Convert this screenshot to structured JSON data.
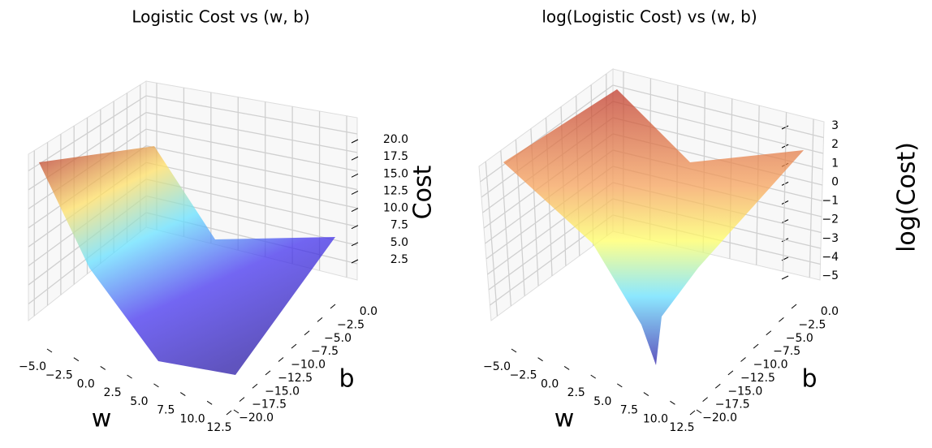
{
  "chart_data": [
    {
      "type": "surface3d",
      "title": "Logistic Cost vs (w, b)",
      "xlabel": "w",
      "ylabel": "b",
      "zlabel": "Cost",
      "xlim": [
        -5,
        12.5
      ],
      "ylim": [
        -20,
        0
      ],
      "zlim": [
        2.5,
        20
      ],
      "xticks": [
        {
          "value": -5,
          "label": "−5.0"
        },
        {
          "value": -2.5,
          "label": "−2.5"
        },
        {
          "value": 0,
          "label": "0.0"
        },
        2.5,
        {
          "value": 5,
          "label": "5.0"
        },
        7.5,
        {
          "value": 10,
          "label": "10.0"
        },
        12.5
      ],
      "yticks": [
        {
          "value": 0,
          "label": "0.0"
        },
        {
          "value": -2.5,
          "label": "−2.5"
        },
        {
          "value": -5,
          "label": "−5.0"
        },
        {
          "value": -7.5,
          "label": "−7.5"
        },
        {
          "value": -10,
          "label": "−10.0"
        },
        {
          "value": -12.5,
          "label": "−12.5"
        },
        {
          "value": -15,
          "label": "−15.0"
        },
        {
          "value": -17.5,
          "label": "−17.5"
        },
        {
          "value": -20,
          "label": "−20.0"
        }
      ],
      "zticks": [
        2.5,
        {
          "value": 5,
          "label": "5.0"
        },
        7.5,
        {
          "value": 10,
          "label": "10.0"
        },
        12.5,
        {
          "value": 15,
          "label": "15.0"
        },
        17.5,
        {
          "value": 20,
          "label": "20.0"
        }
      ]
    },
    {
      "type": "surface3d",
      "title": "log(Logistic Cost) vs (w, b)",
      "xlabel": "w",
      "ylabel": "b",
      "zlabel": "log(Cost)",
      "xlim": [
        -5,
        12.5
      ],
      "ylim": [
        -20,
        0
      ],
      "zlim": [
        -5,
        3
      ],
      "xticks": [
        {
          "value": -5,
          "label": "−5.0"
        },
        {
          "value": -2.5,
          "label": "−2.5"
        },
        {
          "value": 0,
          "label": "0.0"
        },
        2.5,
        {
          "value": 5,
          "label": "5.0"
        },
        7.5,
        {
          "value": 10,
          "label": "10.0"
        },
        12.5
      ],
      "yticks": [
        {
          "value": 0,
          "label": "0.0"
        },
        {
          "value": -2.5,
          "label": "−2.5"
        },
        {
          "value": -5,
          "label": "−5.0"
        },
        {
          "value": -7.5,
          "label": "−7.5"
        },
        {
          "value": -10,
          "label": "−10.0"
        },
        {
          "value": -12.5,
          "label": "−12.5"
        },
        {
          "value": -15,
          "label": "−15.0"
        },
        {
          "value": -17.5,
          "label": "−17.5"
        },
        {
          "value": -20,
          "label": "−20.0"
        }
      ],
      "zticks": [
        3,
        2,
        1,
        0,
        {
          "value": -1,
          "label": "−1"
        },
        {
          "value": -2,
          "label": "−2"
        },
        {
          "value": -3,
          "label": "−3"
        },
        {
          "value": -4,
          "label": "−4"
        },
        {
          "value": -5,
          "label": "−5"
        }
      ]
    }
  ]
}
